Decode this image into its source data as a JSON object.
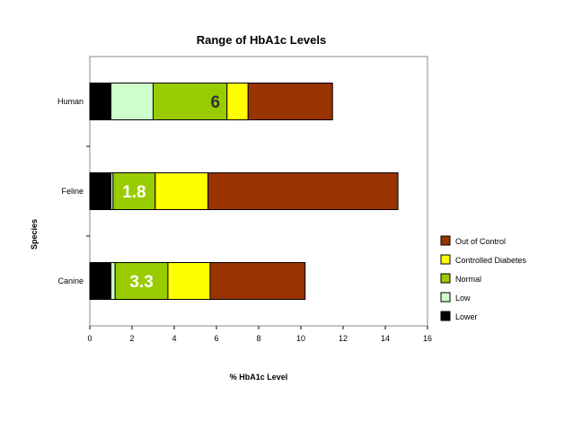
{
  "chart_data": {
    "type": "bar",
    "orientation": "horizontal",
    "stacked": true,
    "title": "Range of HbA1c Levels",
    "xlabel": "% HbA1c Level",
    "ylabel": "Species",
    "xlim": [
      0,
      16
    ],
    "xticks": [
      0,
      2,
      4,
      6,
      8,
      10,
      12,
      14,
      16
    ],
    "categories": [
      "Human",
      "Feline",
      "Canine"
    ],
    "series": [
      {
        "name": "Lower",
        "color": "#000000",
        "values": [
          1.0,
          1.0,
          1.0
        ]
      },
      {
        "name": "Low",
        "color": "#ccffcc",
        "values": [
          2.0,
          0.1,
          0.2
        ]
      },
      {
        "name": "Normal",
        "color": "#99cc00",
        "values": [
          3.5,
          2.0,
          2.5
        ]
      },
      {
        "name": "Controlled Diabetes",
        "color": "#ffff00",
        "values": [
          1.0,
          2.5,
          2.0
        ]
      },
      {
        "name": "Out of Control",
        "color": "#993300",
        "values": [
          4.0,
          9.0,
          4.5
        ]
      }
    ],
    "legend_order": [
      "Out of Control",
      "Controlled Diabetes",
      "Normal",
      "Low",
      "Lower"
    ],
    "legend_position": "right",
    "annotations": [
      {
        "category": "Human",
        "text": "6",
        "color": "#333333"
      },
      {
        "category": "Feline",
        "text": "1.8",
        "color": "#ffffff"
      },
      {
        "category": "Canine",
        "text": "3.3",
        "color": "#ffffff"
      }
    ],
    "grid": false
  }
}
